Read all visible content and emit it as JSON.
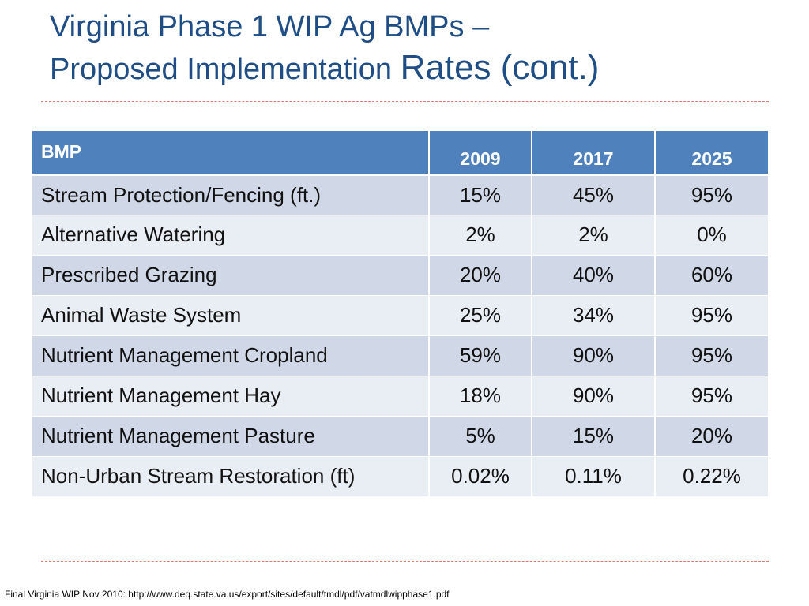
{
  "title": {
    "line1": "Virginia Phase 1 WIP Ag BMPs –",
    "line2_part1": "Proposed Implementation ",
    "line2_part2": "Rates (cont.)"
  },
  "table": {
    "headers": [
      "BMP",
      "2009",
      "2017",
      "2025"
    ],
    "rows": [
      {
        "bmp": "Stream Protection/Fencing (ft.)",
        "y2009": "15%",
        "y2017": "45%",
        "y2025": "95%"
      },
      {
        "bmp": "Alternative Watering",
        "y2009": "2%",
        "y2017": "2%",
        "y2025": "0%"
      },
      {
        "bmp": "Prescribed Grazing",
        "y2009": "20%",
        "y2017": "40%",
        "y2025": "60%"
      },
      {
        "bmp": "Animal Waste System",
        "y2009": "25%",
        "y2017": "34%",
        "y2025": "95%"
      },
      {
        "bmp": "Nutrient Management Cropland",
        "y2009": "59%",
        "y2017": "90%",
        "y2025": "95%"
      },
      {
        "bmp": "Nutrient Management Hay",
        "y2009": "18%",
        "y2017": "90%",
        "y2025": "95%"
      },
      {
        "bmp": "Nutrient Management Pasture",
        "y2009": "5%",
        "y2017": "15%",
        "y2025": "20%"
      },
      {
        "bmp": "Non-Urban Stream Restoration (ft)",
        "y2009": "0.02%",
        "y2017": "0.11%",
        "y2025": "0.22%"
      }
    ]
  },
  "footnote": "Final Virginia WIP Nov 2010: http://www.deq.state.va.us/export/sites/default/tmdl/pdf/vatmdlwipphase1.pdf",
  "colors": {
    "title": "#1f4e87",
    "header_bg": "#4f81bd",
    "row_dark": "#d0d8e8",
    "row_light": "#e9edf4",
    "divider": "#e07b6f"
  }
}
